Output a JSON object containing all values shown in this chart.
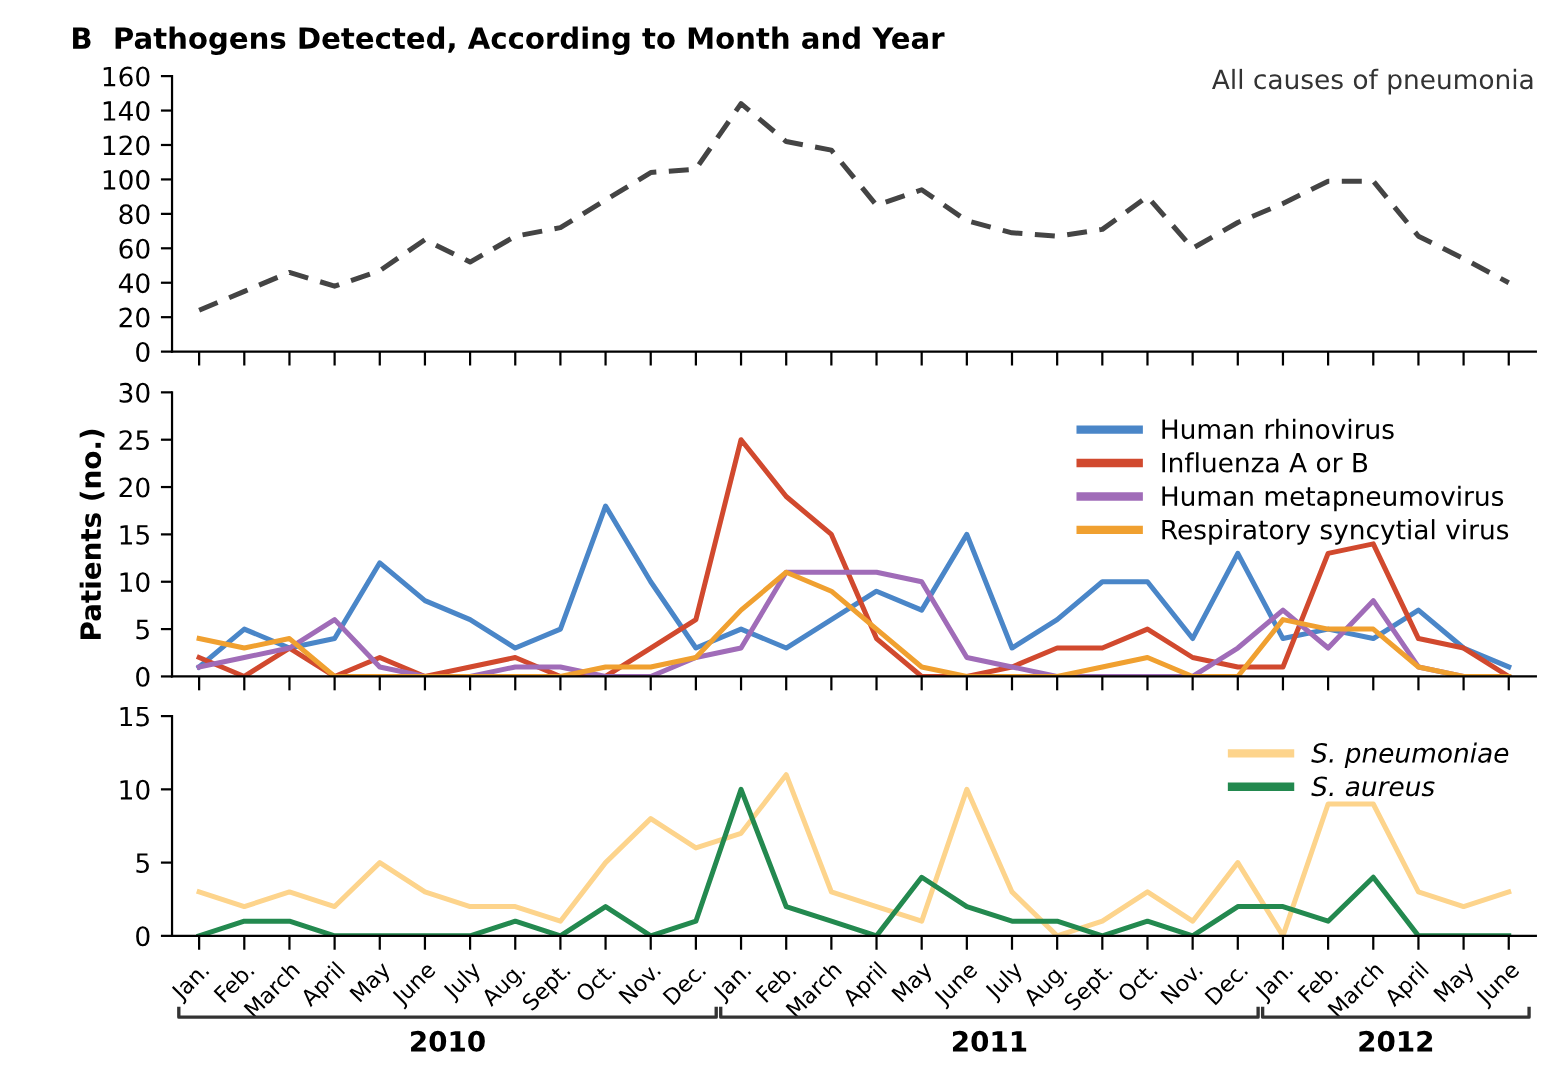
{
  "chart_data": [
    {
      "type": "line",
      "title": "B  Pathogens Detected, According to Month and Year",
      "categories": [
        null,
        null,
        null,
        null,
        null,
        null,
        null,
        null,
        null,
        null,
        null,
        null,
        null,
        null,
        null,
        null,
        null,
        null,
        null,
        null,
        null,
        null,
        null,
        null,
        null,
        null,
        null,
        null,
        null,
        null
      ],
      "series": [
        {
          "name": "All causes of pneumonia",
          "color": "#444444",
          "line_style": "dashed",
          "values": [
            24,
            35,
            46,
            38,
            47,
            65,
            52,
            67,
            72,
            88,
            104,
            106,
            144,
            122,
            117,
            85,
            94,
            76,
            69,
            67,
            71,
            90,
            60,
            75,
            86,
            99,
            99,
            67,
            54,
            40
          ]
        }
      ],
      "ylim": [
        0,
        160
      ],
      "yticks": [
        0,
        20,
        40,
        60,
        80,
        100,
        120,
        140,
        160
      ],
      "tick_labels": "y",
      "legend": false,
      "marker": "none",
      "grid": false
    },
    {
      "type": "line",
      "ylabel": "Patients (no.)",
      "categories": [
        null,
        null,
        null,
        null,
        null,
        null,
        null,
        null,
        null,
        null,
        null,
        null,
        null,
        null,
        null,
        null,
        null,
        null,
        null,
        null,
        null,
        null,
        null,
        null,
        null,
        null,
        null,
        null,
        null,
        null
      ],
      "series": [
        {
          "name": "Human rhinovirus",
          "color": "#4a86c8",
          "values": [
            1,
            5,
            3,
            4,
            12,
            8,
            6,
            3,
            5,
            18,
            10,
            3,
            5,
            3,
            6,
            9,
            7,
            15,
            3,
            6,
            10,
            10,
            4,
            13,
            4,
            5,
            4,
            7,
            3,
            1
          ]
        },
        {
          "name": "Influenza A or B",
          "color": "#d1492e",
          "values": [
            2,
            0,
            3,
            0,
            2,
            0,
            1,
            2,
            0,
            0,
            3,
            6,
            25,
            19,
            15,
            4,
            0,
            0,
            1,
            3,
            3,
            5,
            2,
            1,
            1,
            13,
            14,
            4,
            3,
            0
          ]
        },
        {
          "name": "Human metapneumovirus",
          "color": "#a06cb8",
          "values": [
            1,
            2,
            3,
            6,
            1,
            0,
            0,
            1,
            1,
            0,
            0,
            2,
            3,
            11,
            11,
            11,
            10,
            2,
            1,
            0,
            0,
            0,
            0,
            3,
            7,
            3,
            8,
            1,
            0,
            0
          ]
        },
        {
          "name": "Respiratory syncytial virus",
          "color": "#f0a030",
          "values": [
            4,
            3,
            4,
            0,
            0,
            0,
            0,
            0,
            0,
            1,
            1,
            2,
            7,
            11,
            9,
            5,
            1,
            0,
            0,
            0,
            1,
            2,
            0,
            0,
            6,
            5,
            5,
            1,
            0,
            0
          ]
        }
      ],
      "ylim": [
        0,
        30
      ],
      "yticks": [
        0,
        5,
        10,
        15,
        20,
        25,
        30
      ],
      "tick_labels": "y",
      "legend": "top right",
      "marker": "none",
      "grid": false
    },
    {
      "type": "line",
      "categories": [
        "Jan.",
        "Feb.",
        "March",
        "April",
        "May",
        "June",
        "July",
        "Aug.",
        "Sept.",
        "Oct.",
        "Nov.",
        "Dec.",
        "Jan.",
        "Feb.",
        "March",
        "April",
        "May",
        "June",
        "July",
        "Aug.",
        "Sept.",
        "Oct.",
        "Nov.",
        "Dec.",
        "Jan.",
        "Feb.",
        "March",
        "April",
        "May",
        "June"
      ],
      "series": [
        {
          "name": "S. pneumoniae",
          "color": "#fdd48c",
          "values": [
            3,
            2,
            3,
            2,
            5,
            3,
            2,
            2,
            1,
            5,
            8,
            6,
            7,
            11,
            3,
            2,
            1,
            10,
            3,
            0,
            1,
            3,
            1,
            5,
            0,
            9,
            9,
            3,
            2,
            3
          ]
        },
        {
          "name": "S. aureus",
          "color": "#23894f",
          "values": [
            0,
            1,
            1,
            0,
            0,
            0,
            0,
            1,
            0,
            2,
            0,
            1,
            10,
            2,
            1,
            0,
            4,
            2,
            1,
            1,
            0,
            1,
            0,
            2,
            2,
            1,
            4,
            0,
            0,
            0
          ]
        }
      ],
      "ylim": [
        0,
        15
      ],
      "yticks": [
        0,
        5,
        10,
        15
      ],
      "legend": "top right",
      "marker": "none",
      "grid": false,
      "annotations": [
        "2010",
        "2011",
        "2012"
      ]
    }
  ]
}
